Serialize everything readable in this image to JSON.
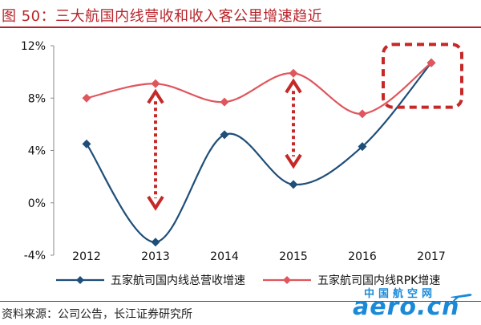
{
  "title": "图 50：三大航国内线营收和收入客公里增速趋近",
  "source": "资料来源：公司公告，长江证券研究所",
  "watermark": {
    "cn": "中国航空网",
    "en": "aero.cn"
  },
  "colors": {
    "accent": "#b8242a",
    "series_blue": "#1f4e79",
    "series_red": "#e0565d",
    "callout": "#c62828"
  },
  "chart_data": {
    "type": "line",
    "x": [
      "2012",
      "2013",
      "2014",
      "2015",
      "2016",
      "2017"
    ],
    "ylim": [
      -4,
      12
    ],
    "yticks": [
      "-4%",
      "0%",
      "4%",
      "8%",
      "12%"
    ],
    "ytick_values": [
      -4,
      0,
      4,
      8,
      12
    ],
    "y_unit": "%",
    "grid": false,
    "legend_position": "bottom",
    "series": [
      {
        "name": "五家航司国内线总营收增速",
        "color": "#1f4e79",
        "marker": "diamond",
        "values": [
          4.5,
          -3.0,
          5.2,
          1.4,
          4.3,
          10.7
        ]
      },
      {
        "name": "五家航司国内线RPK增速",
        "color": "#e0565d",
        "marker": "diamond",
        "values": [
          8.0,
          9.1,
          7.7,
          9.9,
          6.8,
          10.7
        ]
      }
    ],
    "annotations": [
      {
        "type": "double-arrow",
        "x": "2013",
        "from": 9.1,
        "to": -1.0
      },
      {
        "type": "double-arrow",
        "x": "2015",
        "from": 9.9,
        "to": 2.2
      },
      {
        "type": "dashed-box",
        "x": "2017",
        "y_range": [
          7.3,
          12.1
        ]
      }
    ]
  }
}
